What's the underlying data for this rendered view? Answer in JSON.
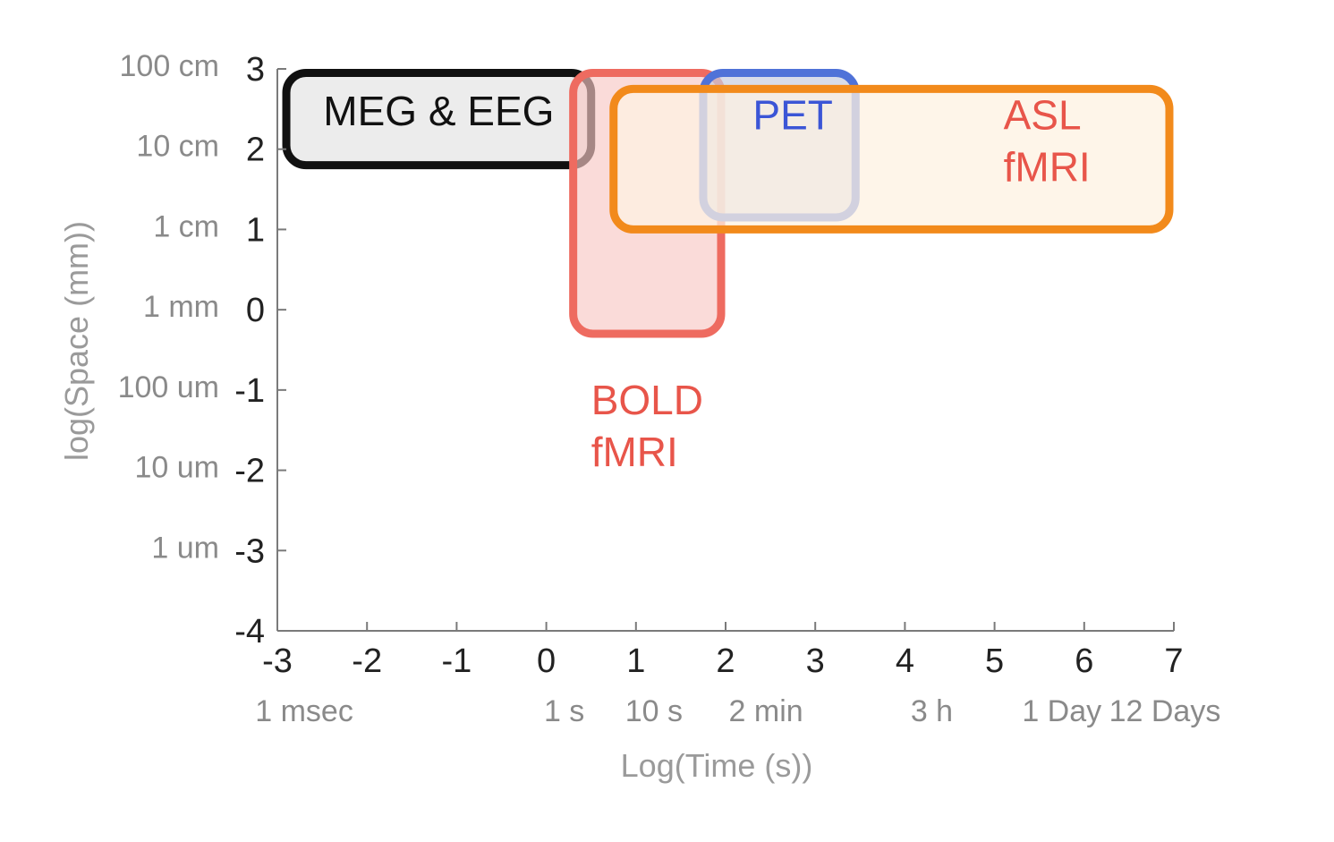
{
  "chart_data": {
    "type": "region",
    "xlabel": "Log(Time (s))",
    "ylabel": "log(Space (mm))",
    "xlim": [
      -3,
      7
    ],
    "ylim": [
      -4,
      3
    ],
    "grid": false,
    "x_ticks": [
      -3,
      -2,
      -1,
      0,
      1,
      2,
      3,
      4,
      5,
      6,
      7
    ],
    "y_ticks": [
      3,
      2,
      1,
      0,
      -1,
      -2,
      -3,
      -4
    ],
    "x_unit_labels": [
      {
        "x": -2.7,
        "label": "1 msec"
      },
      {
        "x": 0.2,
        "label": "1 s"
      },
      {
        "x": 1.2,
        "label": "10 s"
      },
      {
        "x": 2.45,
        "label": "2 min"
      },
      {
        "x": 4.3,
        "label": "3 h"
      },
      {
        "x": 5.75,
        "label": "1 Day"
      },
      {
        "x": 6.9,
        "label": "12 Days"
      }
    ],
    "y_unit_labels": [
      {
        "y": 3,
        "label": "100 cm"
      },
      {
        "y": 2,
        "label": "10 cm"
      },
      {
        "y": 1,
        "label": "1 cm"
      },
      {
        "y": 0,
        "label": "1 mm"
      },
      {
        "y": -1,
        "label": "100 um"
      },
      {
        "y": -2,
        "label": "10 um"
      },
      {
        "y": -3,
        "label": "1 um"
      }
    ],
    "regions": [
      {
        "name": "MEG & EEG",
        "lines": [
          "MEG & EEG"
        ],
        "x": [
          -2.9,
          0.5
        ],
        "y": [
          1.8,
          2.95
        ],
        "stroke": "#111111",
        "fill": "#ececec",
        "fill_opacity": 1,
        "text_color": "#111111",
        "label_pos": [
          -1.2,
          2.3
        ],
        "label_anchor": "middle"
      },
      {
        "name": "BOLD fMRI",
        "lines": [
          "BOLD",
          "fMRI"
        ],
        "x": [
          0.3,
          1.95
        ],
        "y": [
          -0.3,
          2.95
        ],
        "stroke": "#ee6b60",
        "fill": "#f7c8c4",
        "fill_opacity": 0.65,
        "text_color": "#e8554a",
        "label_pos": [
          0.5,
          -1.3
        ],
        "label_anchor": "start"
      },
      {
        "name": "PET",
        "lines": [
          "PET"
        ],
        "x": [
          1.75,
          3.45
        ],
        "y": [
          1.15,
          2.95
        ],
        "stroke": "#4f72d8",
        "fill": "#c8cde0",
        "fill_opacity": 0.7,
        "text_color": "#3b55d6",
        "label_pos": [
          2.75,
          2.25
        ],
        "label_anchor": "middle"
      },
      {
        "name": "ASL fMRI",
        "lines": [
          "ASL",
          "fMRI"
        ],
        "x": [
          0.75,
          6.95
        ],
        "y": [
          1.0,
          2.75
        ],
        "stroke": "#f28a1b",
        "fill": "#fdf1e2",
        "fill_opacity": 0.75,
        "text_color": "#e8554a",
        "label_pos": [
          5.1,
          2.25
        ],
        "label_anchor": "start"
      }
    ]
  }
}
